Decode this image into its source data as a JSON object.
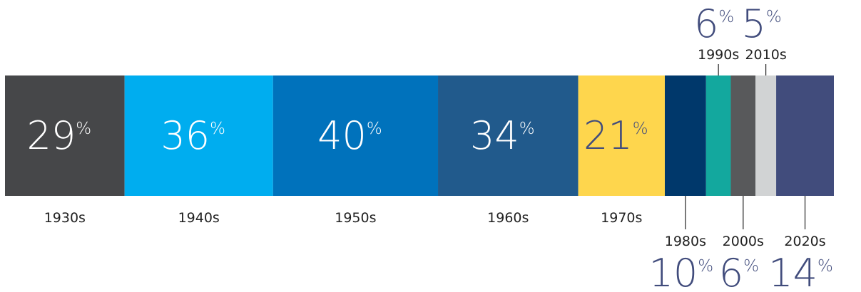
{
  "chart_data": {
    "type": "bar",
    "orientation": "horizontal-stacked",
    "categories": [
      "1930s",
      "1940s",
      "1950s",
      "1960s",
      "1970s",
      "1980s",
      "1990s",
      "2000s",
      "2010s",
      "2020s"
    ],
    "values": [
      29,
      36,
      40,
      34,
      21,
      10,
      6,
      6,
      5,
      14
    ],
    "value_suffix": "%",
    "colors": [
      "#464749",
      "#00adef",
      "#0072bc",
      "#215a8c",
      "#fed64d",
      "#00386b",
      "#13a89e",
      "#58595b",
      "#d1d3d4",
      "#414c7c"
    ],
    "label_placement": [
      "inside",
      "inside",
      "inside",
      "inside",
      "inside",
      "below",
      "above",
      "below",
      "above",
      "below"
    ],
    "value_color_outside": "#414c7c",
    "title": "",
    "xlabel": "",
    "ylabel": ""
  }
}
